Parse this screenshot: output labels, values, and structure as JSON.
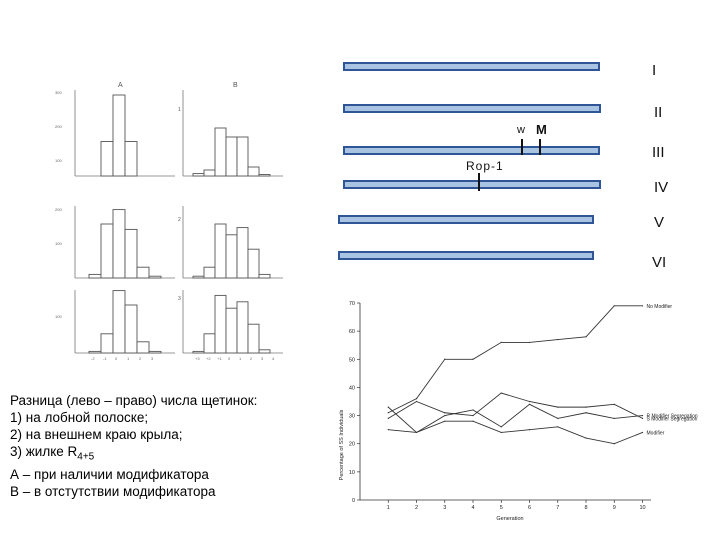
{
  "histograms": {
    "column_a": "A",
    "column_b": "B",
    "row_numbers": [
      "1",
      "2",
      "3"
    ],
    "y_ticks_row1": [
      "300",
      "200",
      "100"
    ],
    "y_ticks_row2": [
      "200",
      "100"
    ],
    "y_ticks_row3": [
      "100"
    ],
    "x_ticks_a": [
      "-2",
      "-1",
      "0",
      "1",
      "2",
      "3"
    ],
    "x_ticks_b": [
      "+3",
      "+2",
      "+1",
      "0",
      "1",
      "2",
      "3",
      "4"
    ],
    "panels": {
      "a1": [
        0,
        115,
        270,
        115,
        0,
        0
      ],
      "b1": [
        8,
        20,
        160,
        130,
        130,
        30,
        5,
        0
      ],
      "a2": [
        10,
        150,
        190,
        135,
        30,
        5
      ],
      "b2": [
        5,
        30,
        150,
        120,
        140,
        80,
        10,
        0
      ],
      "a3": [
        5,
        60,
        195,
        150,
        35,
        5
      ],
      "b3": [
        5,
        60,
        180,
        140,
        160,
        90,
        10,
        0
      ]
    }
  },
  "chromosomes": {
    "labels": [
      "I",
      "II",
      "III",
      "IV",
      "V",
      "VI"
    ],
    "genes": [
      {
        "label": "w"
      },
      {
        "label": "M"
      },
      {
        "label": "Rop-1"
      }
    ]
  },
  "chart_data": {
    "type": "line",
    "title": "",
    "xlabel": "Generation",
    "ylabel": "Percentage of SS Individuals",
    "x": [
      1,
      2,
      3,
      4,
      5,
      6,
      7,
      8,
      9,
      10
    ],
    "ylim": [
      0,
      70
    ],
    "yticks": [
      0,
      10,
      20,
      30,
      40,
      50,
      60,
      70
    ],
    "series": [
      {
        "name": "No Modifier",
        "values": [
          31,
          36,
          50,
          50,
          56,
          56,
          57,
          58,
          69,
          69
        ]
      },
      {
        "name": "S Modifier Segregation",
        "values": [
          29,
          35,
          31,
          30,
          38,
          35,
          33,
          33,
          34,
          29
        ]
      },
      {
        "name": "R Modifier Segregation",
        "values": [
          33,
          24,
          30,
          32,
          26,
          34,
          29,
          31,
          29,
          30
        ]
      },
      {
        "name": "Modifier",
        "values": [
          25,
          24,
          28,
          28,
          24,
          25,
          26,
          22,
          20,
          24
        ]
      }
    ]
  },
  "caption": {
    "line1": "Разница (лево – право) числа щетинок:",
    "line2": "1)   на лобной полоске;",
    "line3": "2)   на внешнем краю крыла;",
    "line4_prefix": "3)   жилке R",
    "line4_sub": "4+5",
    "line5": "А – при наличии модификатора",
    "line6": "В – в отстутствии модификатора"
  }
}
